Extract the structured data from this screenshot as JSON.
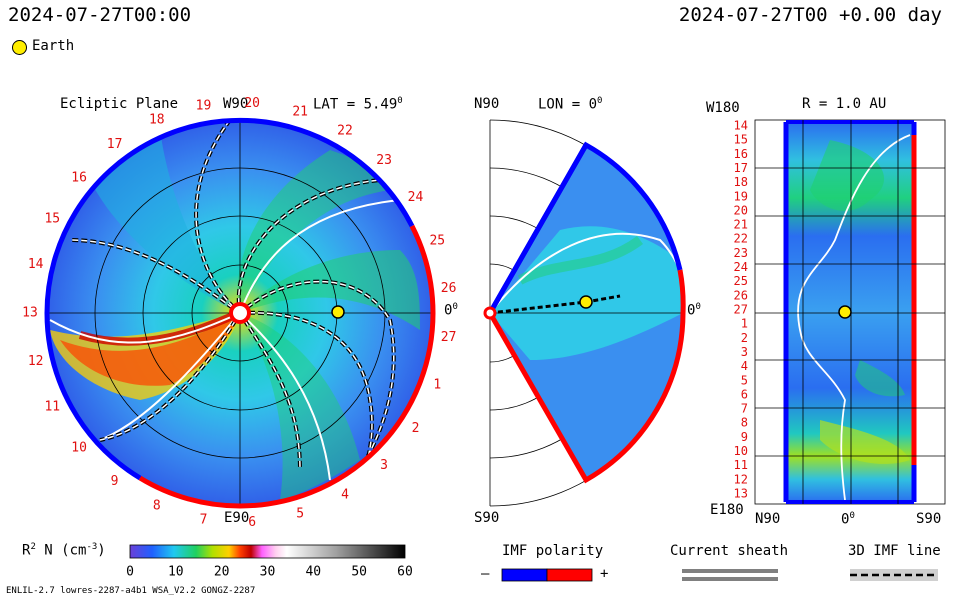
{
  "header": {
    "time_left": "2024-07-27T00:00",
    "time_right": "2024-07-27T00 +0.00 day",
    "legend_earth": "Earth"
  },
  "ecliptic": {
    "title": "Ecliptic Plane",
    "lat_label": "LAT = 5.49",
    "lat_sup": "0",
    "top_label": "W90",
    "bottom_label": "E90",
    "right_label": "0",
    "right_sup": "0",
    "carrington": [
      "19",
      "20",
      "21",
      "22",
      "23",
      "24",
      "25",
      "26",
      "27",
      "1",
      "2",
      "3",
      "4",
      "5",
      "6",
      "7",
      "8",
      "9",
      "10",
      "11",
      "12",
      "13",
      "14",
      "15",
      "16",
      "17",
      "18"
    ]
  },
  "meridional": {
    "top_label": "N90",
    "bottom_label": "S90",
    "lon_label": "LON = 0",
    "lon_sup": "0",
    "right_label": "0",
    "right_sup": "0"
  },
  "synoptic": {
    "top_left": "W180",
    "bottom_left": "E180",
    "r_label": "R = 1.0 AU",
    "x_left": "N90",
    "x_mid": "0",
    "x_mid_sup": "0",
    "x_right": "S90",
    "rows": [
      "14",
      "15",
      "16",
      "17",
      "18",
      "19",
      "20",
      "21",
      "22",
      "23",
      "24",
      "25",
      "26",
      "27",
      "1",
      "2",
      "3",
      "4",
      "5",
      "6",
      "7",
      "8",
      "9",
      "10",
      "11",
      "12",
      "13"
    ]
  },
  "colorbar": {
    "label_r": "R",
    "label_sup": "2",
    "label_rest": "N (cm",
    "label_exp": "-3",
    "label_close": ")",
    "ticks": [
      "0",
      "10",
      "20",
      "30",
      "40",
      "50",
      "60"
    ],
    "range": [
      0,
      60
    ]
  },
  "imf_legend": {
    "title": "IMF polarity",
    "minus": "–",
    "plus": "+",
    "negative_color": "#0000ff",
    "positive_color": "#ff0000"
  },
  "sheath_legend": {
    "title": "Current sheath"
  },
  "fieldline_legend": {
    "title": "3D IMF line"
  },
  "footer": {
    "model": "ENLIL-2.7 lowres-2287-a4b1 WSA_V2.2 GONGZ-2287"
  }
}
